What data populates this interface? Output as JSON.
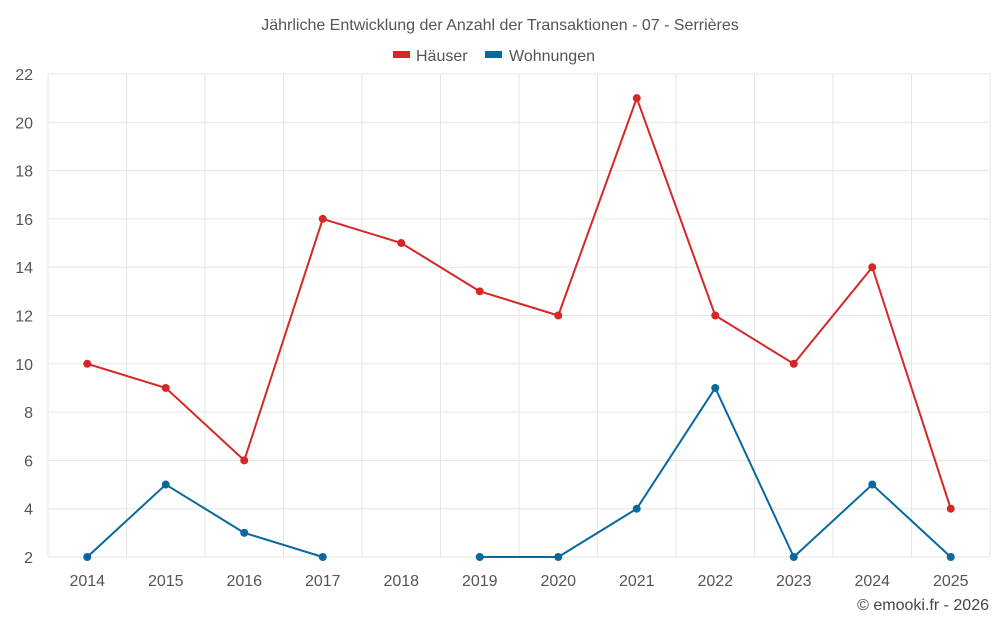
{
  "chart_data": {
    "type": "line",
    "title": "Jährliche Entwicklung der Anzahl der Transaktionen - 07 - Serrières",
    "x": [
      "2014",
      "2015",
      "2016",
      "2017",
      "2018",
      "2019",
      "2020",
      "2021",
      "2022",
      "2023",
      "2024",
      "2025"
    ],
    "series": [
      {
        "name": "Häuser",
        "color": "#d62728",
        "values": [
          10,
          9,
          6,
          16,
          15,
          13,
          12,
          21,
          12,
          10,
          14,
          4
        ]
      },
      {
        "name": "Wohnungen",
        "color": "#0868a0",
        "values": [
          2,
          5,
          3,
          2,
          null,
          2,
          2,
          4,
          9,
          2,
          5,
          2
        ]
      }
    ],
    "ylim": [
      2,
      22
    ],
    "yticks": [
      "2",
      "4",
      "6",
      "8",
      "10",
      "12",
      "14",
      "16",
      "18",
      "20",
      "22"
    ],
    "xlabel": "",
    "ylabel": "",
    "grid": true,
    "legend_position": "top-center"
  },
  "credit": "© emooki.fr - 2026"
}
